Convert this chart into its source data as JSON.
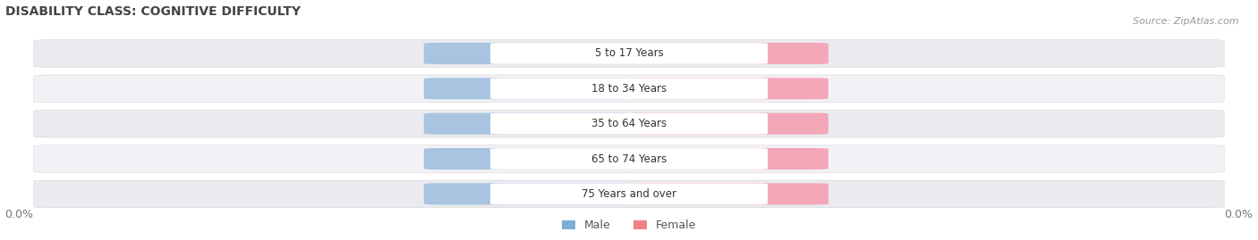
{
  "title": "DISABILITY CLASS: COGNITIVE DIFFICULTY",
  "source": "Source: ZipAtlas.com",
  "categories": [
    "5 to 17 Years",
    "18 to 34 Years",
    "35 to 64 Years",
    "65 to 74 Years",
    "75 Years and over"
  ],
  "male_values": [
    0.0,
    0.0,
    0.0,
    0.0,
    0.0
  ],
  "female_values": [
    0.0,
    0.0,
    0.0,
    0.0,
    0.0
  ],
  "male_color": "#a8c4e0",
  "female_color": "#f4a7b9",
  "bar_bg_color_odd": "#eaeaef",
  "bar_bg_color_even": "#f2f2f6",
  "male_legend_color": "#7bafd4",
  "female_legend_color": "#f08080",
  "background_color": "#ffffff",
  "title_color": "#444444",
  "source_color": "#999999",
  "label_color": "#333333",
  "value_color": "#ffffff",
  "axis_value_color": "#777777"
}
